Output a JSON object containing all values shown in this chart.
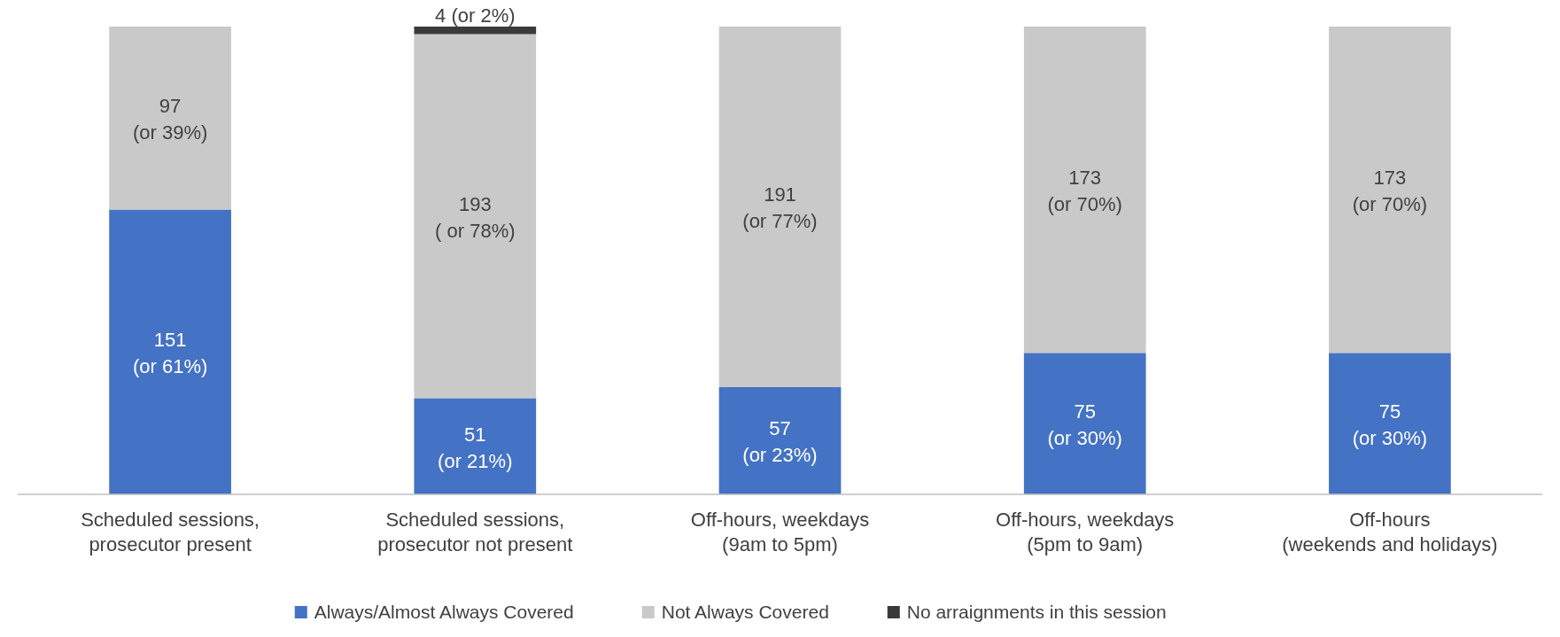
{
  "chart_data": {
    "type": "bar",
    "stacked": true,
    "legend": "bottom",
    "categories": [
      "Scheduled sessions,\nprosecutor present",
      "Scheduled sessions,\nprosecutor not present",
      "Off-hours, weekdays\n(9am to 5pm)",
      "Off-hours, weekdays\n(5pm to 9am)",
      "Off-hours\n(weekends and holidays)"
    ],
    "series": [
      {
        "name": "Always/Almost Always Covered",
        "color": "#4472c4",
        "values": [
          151,
          51,
          57,
          75,
          75
        ],
        "value_labels": [
          "151\n(or 61%)",
          "51\n(or 21%)",
          "57\n(or 23%)",
          "75\n(or 30%)",
          "75\n(or 30%)"
        ]
      },
      {
        "name": "Not Always Covered",
        "color": "#c9c9c9",
        "values": [
          97,
          193,
          191,
          173,
          173
        ],
        "value_labels": [
          "97\n(or 39%)",
          "193\n( or 78%)",
          "191\n(or 77%)",
          "173\n(or 70%)",
          "173\n(or 70%)"
        ]
      },
      {
        "name": "No arraignments in this session",
        "color": "#3a3a3a",
        "values": [
          null,
          4,
          null,
          null,
          null
        ],
        "value_labels": [
          null,
          "4 (or 2%)",
          null,
          null,
          null
        ]
      }
    ]
  }
}
